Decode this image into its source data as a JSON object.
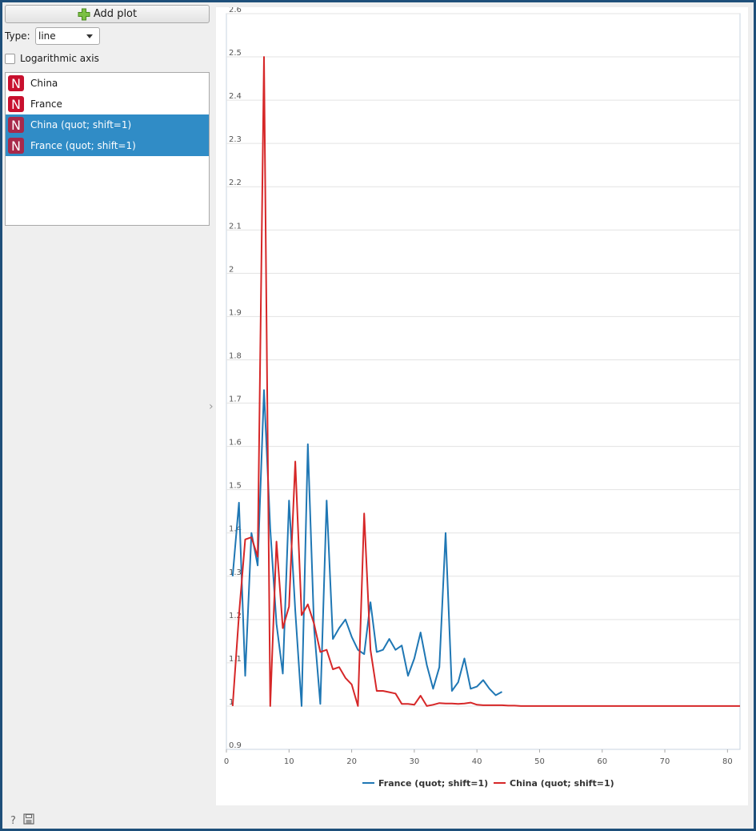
{
  "toolbar": {
    "add_plot_label": "Add plot"
  },
  "controls": {
    "type_label": "Type:",
    "type_value": "line",
    "log_axis_label": "Logarithmic axis",
    "log_axis_checked": false
  },
  "series_list": {
    "items": [
      {
        "label": "China",
        "selected": false,
        "icon": "N"
      },
      {
        "label": "France",
        "selected": false,
        "icon": "N"
      },
      {
        "label": "China (quot; shift=1)",
        "selected": true,
        "icon": "N"
      },
      {
        "label": "France (quot; shift=1)",
        "selected": true,
        "icon": "N"
      }
    ]
  },
  "icons": {
    "help": "help-icon",
    "save": "save-icon",
    "add": "plus-icon"
  },
  "chart_data": {
    "type": "line",
    "grid": "horizontal",
    "legend": "bottom",
    "xlim": [
      0,
      82
    ],
    "ylim": [
      0.9,
      2.6
    ],
    "x_ticks": [
      0,
      10,
      20,
      30,
      40,
      50,
      60,
      70,
      80
    ],
    "y_ticks": [
      0.9,
      1,
      1.1,
      1.2,
      1.3,
      1.4,
      1.5,
      1.6,
      1.7,
      1.8,
      1.9,
      2,
      2.1,
      2.2,
      2.3,
      2.4,
      2.5,
      2.6
    ],
    "series": [
      {
        "name": "France (quot; shift=1)",
        "color": "#1f77b4",
        "x": [
          1,
          2,
          3,
          4,
          5,
          6,
          7,
          8,
          9,
          10,
          11,
          12,
          13,
          14,
          15,
          16,
          17,
          18,
          19,
          20,
          21,
          22,
          23,
          24,
          25,
          26,
          27,
          28,
          29,
          30,
          31,
          32,
          33,
          34,
          35,
          36,
          37,
          38,
          39,
          40,
          41,
          42,
          43,
          44
        ],
        "y": [
          1.3,
          1.47,
          1.07,
          1.4,
          1.325,
          1.73,
          1.41,
          1.19,
          1.075,
          1.475,
          1.22,
          1,
          1.605,
          1.18,
          1.005,
          1.475,
          1.155,
          1.18,
          1.2,
          1.16,
          1.13,
          1.12,
          1.24,
          1.125,
          1.13,
          1.155,
          1.13,
          1.14,
          1.07,
          1.11,
          1.17,
          1.095,
          1.04,
          1.09,
          1.4,
          1.035,
          1.055,
          1.11,
          1.04,
          1.045,
          1.06,
          1.04,
          1.025,
          1.033
        ]
      },
      {
        "name": "China (quot; shift=1)",
        "color": "#d62728",
        "x": [
          1,
          2,
          3,
          4,
          5,
          6,
          7,
          8,
          9,
          10,
          11,
          12,
          13,
          14,
          15,
          16,
          17,
          18,
          19,
          20,
          21,
          22,
          23,
          24,
          25,
          26,
          27,
          28,
          29,
          30,
          31,
          32,
          33,
          34,
          35,
          36,
          37,
          38,
          39,
          40,
          41,
          42,
          43,
          44,
          45,
          46,
          47,
          48,
          49,
          50,
          52,
          55,
          60,
          65,
          70,
          75,
          80,
          82
        ],
        "y": [
          1,
          1.21,
          1.385,
          1.39,
          1.345,
          2.5,
          1,
          1.38,
          1.18,
          1.23,
          1.565,
          1.21,
          1.235,
          1.19,
          1.125,
          1.13,
          1.085,
          1.09,
          1.065,
          1.05,
          1,
          1.445,
          1.13,
          1.035,
          1.035,
          1.032,
          1.029,
          1.005,
          1.005,
          1.003,
          1.024,
          1,
          1.003,
          1.007,
          1.006,
          1.006,
          1.005,
          1.006,
          1.008,
          1.003,
          1.002,
          1.002,
          1.002,
          1.002,
          1.001,
          1.001,
          1,
          1,
          1,
          1,
          1,
          1,
          1,
          1,
          1,
          1,
          1,
          1
        ]
      }
    ]
  }
}
